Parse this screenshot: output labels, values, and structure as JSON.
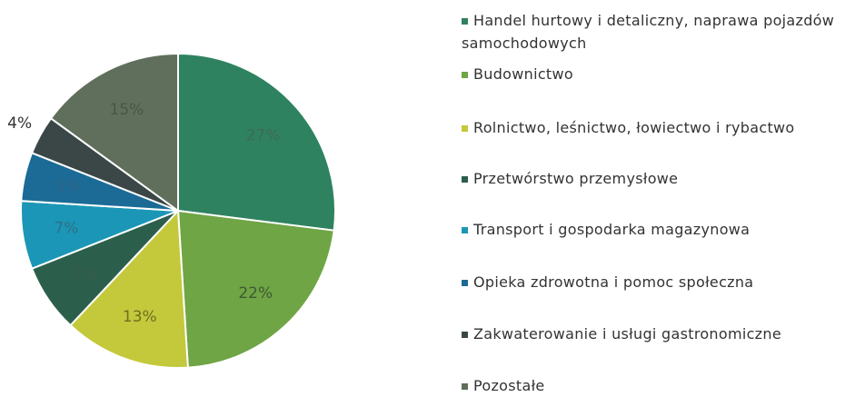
{
  "chart_data": {
    "type": "pie",
    "categories": [
      "Handel hurtowy i detaliczny, naprawa pojazdów samochodowych",
      "Budownictwo",
      "Rolnictwo, leśnictwo, łowiectwo i rybactwo",
      "Przetwórstwo przemysłowe",
      "Transport i gospodarka magazynowa",
      "Opieka zdrowotna i pomoc społeczna",
      "Zakwaterowanie i usługi gastronomiczne",
      "Pozostałe"
    ],
    "values": [
      27,
      22,
      13,
      7,
      7,
      5,
      4,
      15
    ],
    "value_labels": [
      "27%",
      "22%",
      "13%",
      "7%",
      "7%",
      "5%",
      "4%",
      "15%"
    ],
    "colors": [
      "#2e8260",
      "#6fa545",
      "#c3c93b",
      "#2c5f4b",
      "#1b96b6",
      "#1b6b96",
      "#3b4747",
      "#606f5b"
    ]
  }
}
